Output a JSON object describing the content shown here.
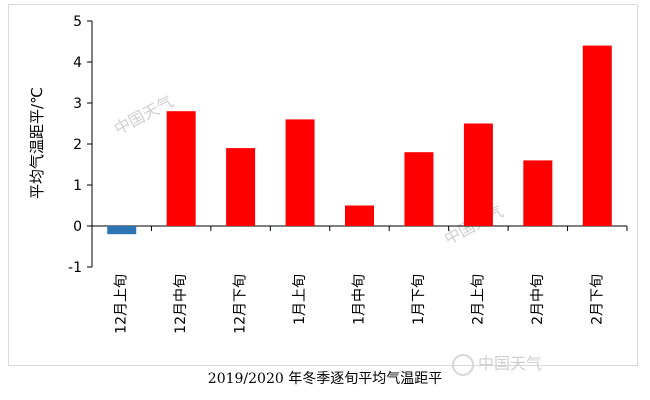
{
  "chart_data": {
    "type": "bar",
    "title": "2019/2020 年冬季逐旬平均气温距平",
    "ylabel": "平均气温距平/℃",
    "xlabel": "",
    "ylim": [
      -1,
      5
    ],
    "yticks": [
      -1,
      0,
      1,
      2,
      3,
      4,
      5
    ],
    "categories": [
      "12月上旬",
      "12月中旬",
      "12月下旬",
      "1月上旬",
      "1月中旬",
      "1月下旬",
      "2月上旬",
      "2月中旬",
      "2月下旬"
    ],
    "values": [
      -0.2,
      2.8,
      1.9,
      2.6,
      0.5,
      1.8,
      2.5,
      1.6,
      4.4
    ],
    "colors": {
      "positive": "#ff0000",
      "negative": "#2e75b6"
    },
    "grid": false,
    "legend": "none"
  },
  "watermarks": [
    "中国天气",
    "中国天气",
    "中国天气"
  ]
}
